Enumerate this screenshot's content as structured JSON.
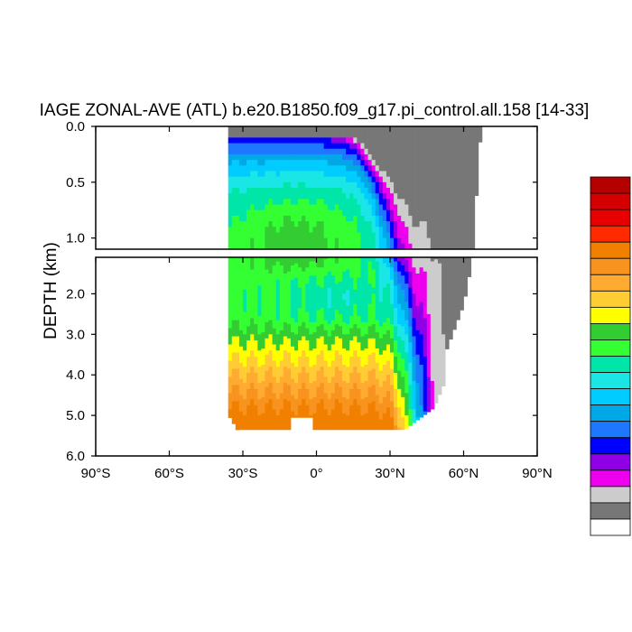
{
  "chart_data": {
    "type": "heatmap",
    "title": "IAGE ZONAL-AVE (ATL) b.e20.B1850.f09_g17.pi_control.all.158 [14-33]",
    "ylabel": "DEPTH (km)",
    "xlabel": "",
    "xlim": [
      -90,
      90
    ],
    "upper_panel": {
      "ylim": [
        0,
        1.1
      ],
      "yticks": [
        {
          "value": 0.0,
          "label": "0.0"
        },
        {
          "value": 0.5,
          "label": "0.5"
        },
        {
          "value": 1.0,
          "label": "1.0"
        }
      ]
    },
    "lower_panel": {
      "ylim": [
        1.1,
        6.0
      ],
      "yticks": [
        {
          "value": 2.0,
          "label": "2.0"
        },
        {
          "value": 3.0,
          "label": "3.0"
        },
        {
          "value": 4.0,
          "label": "4.0"
        },
        {
          "value": 5.0,
          "label": "5.0"
        },
        {
          "value": 6.0,
          "label": "6.0"
        }
      ]
    },
    "xticks": [
      {
        "value": -90,
        "label": "90°S"
      },
      {
        "value": -60,
        "label": "60°S"
      },
      {
        "value": -30,
        "label": "30°S"
      },
      {
        "value": 0,
        "label": "0°"
      },
      {
        "value": 30,
        "label": "30°N"
      },
      {
        "value": 60,
        "label": "60°N"
      },
      {
        "value": 90,
        "label": "90°N"
      }
    ],
    "colorbar": {
      "placement": "right",
      "colors_top_to_bottom": [
        "#b50000",
        "#d40000",
        "#e80000",
        "#ff2a00",
        "#f28000",
        "#f7931e",
        "#ffaa30",
        "#ffcc33",
        "#ffff00",
        "#33cc33",
        "#33ff33",
        "#00e6a8",
        "#1ae6e6",
        "#00ccff",
        "#00a8e6",
        "#1e78ff",
        "#0000ff",
        "#8f00e6",
        "#ee00ee",
        "#cccccc",
        "#777777",
        "#ffffff"
      ]
    },
    "level_colors": [
      "#ffffff",
      "#777777",
      "#cccccc",
      "#ee00ee",
      "#8f00e6",
      "#0000ff",
      "#1e78ff",
      "#00a8e6",
      "#00ccff",
      "#1ae6e6",
      "#00e6a8",
      "#33ff33",
      "#33cc33",
      "#ffff00",
      "#ffcc33",
      "#ffaa30",
      "#f7931e",
      "#f28000"
    ]
  }
}
